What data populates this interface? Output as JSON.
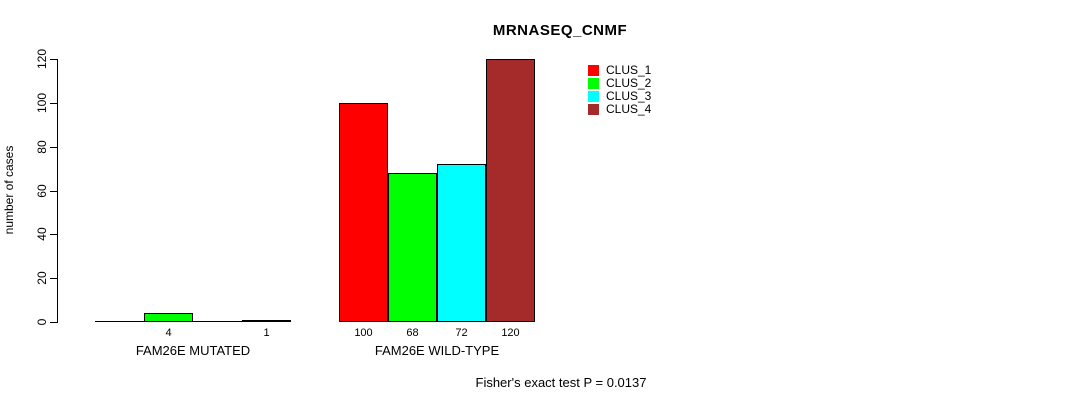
{
  "chart_data": {
    "type": "bar",
    "title": "MRNASEQ_CNMF",
    "ylabel": "number of cases",
    "xlabel": "",
    "ylim": [
      0,
      120
    ],
    "yticks": [
      0,
      20,
      40,
      60,
      80,
      100,
      120
    ],
    "categories": [
      "FAM26E MUTATED",
      "FAM26E WILD-TYPE"
    ],
    "series": [
      {
        "name": "CLUS_1",
        "color": "#ff0000",
        "values": [
          0,
          100
        ]
      },
      {
        "name": "CLUS_2",
        "color": "#00ff00",
        "values": [
          4,
          68
        ]
      },
      {
        "name": "CLUS_3",
        "color": "#00ffff",
        "values": [
          0,
          72
        ]
      },
      {
        "name": "CLUS_4",
        "color": "#a52a2a",
        "values": [
          1,
          120
        ]
      }
    ],
    "bar_value_labels": {
      "FAM26E MUTATED": [
        "",
        "4",
        "",
        "1"
      ],
      "FAM26E WILD-TYPE": [
        "100",
        "68",
        "72",
        "120"
      ]
    },
    "legend": {
      "position": "inside-top-right",
      "entries": [
        "CLUS_1",
        "CLUS_2",
        "CLUS_3",
        "CLUS_4"
      ]
    },
    "grid": false,
    "annotation": "Fisher's exact test P = 0.0137",
    "axis_color": "#000000",
    "background_color": "#ffffff"
  }
}
